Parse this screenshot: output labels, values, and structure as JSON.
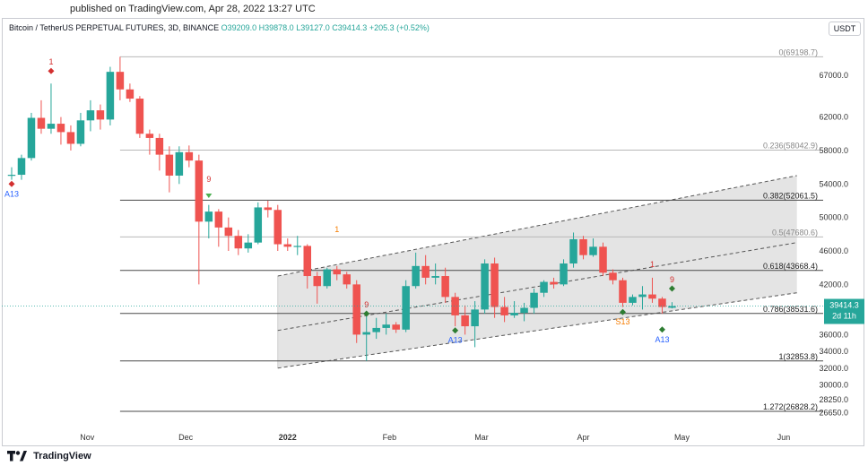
{
  "header": {
    "published": "published on TradingView.com, Apr 28, 2022 13:27 UTC",
    "instrument": "Bitcoin / TetherUS PERPETUAL FUTURES, 3D, BINANCE",
    "open": "O39209.0",
    "high": "H39878.0",
    "low": "L39127.0",
    "close": "C39414.3",
    "change": "+205.3 (+0.52%)",
    "currency_button": "USDT"
  },
  "brand": {
    "name": "TradingView"
  },
  "colors": {
    "up": "#26a69a",
    "down": "#ef5350",
    "channel_fill": "#e1e1e1",
    "fib_line": "#4a4a4a",
    "last_price_bg": "#26a69a",
    "signal_red": "#d32f2f",
    "signal_green": "#2e7d32",
    "label_blue": "#2962ff",
    "label_orange": "#f57c00"
  },
  "chart_data": {
    "type": "candlestick",
    "ylim": [
      24800,
      71700
    ],
    "y_ticks": [
      {
        "label": "67000.0",
        "value": 67000
      },
      {
        "label": "62000.0",
        "value": 62000
      },
      {
        "label": "58000.0",
        "value": 58000
      },
      {
        "label": "54000.0",
        "value": 54000
      },
      {
        "label": "50000.0",
        "value": 50000
      },
      {
        "label": "46000.0",
        "value": 46000
      },
      {
        "label": "42000.0",
        "value": 42000
      },
      {
        "label": "36000.0",
        "value": 36000
      },
      {
        "label": "34000.0",
        "value": 34000
      },
      {
        "label": "32000.0",
        "value": 32000
      },
      {
        "label": "30000.0",
        "value": 30000
      },
      {
        "label": "28250.0",
        "value": 28250
      },
      {
        "label": "26650.0",
        "value": 26650
      }
    ],
    "x_ticks": [
      {
        "label": "Nov",
        "date": "2021-11-01"
      },
      {
        "label": "Dec",
        "date": "2021-12-01"
      },
      {
        "label": "2022",
        "date": "2022-01-01",
        "bold": true
      },
      {
        "label": "Feb",
        "date": "2022-02-01"
      },
      {
        "label": "Mar",
        "date": "2022-03-01"
      },
      {
        "label": "Apr",
        "date": "2022-04-01"
      },
      {
        "label": "May",
        "date": "2022-05-01"
      },
      {
        "label": "Jun",
        "date": "2022-06-01"
      }
    ],
    "candles": [
      {
        "date": "2021-10-09",
        "open": 55000,
        "high": 56000,
        "low": 54500,
        "close": 55100
      },
      {
        "date": "2021-10-12",
        "open": 55100,
        "high": 57500,
        "low": 54500,
        "close": 57100
      },
      {
        "date": "2021-10-15",
        "open": 57100,
        "high": 62500,
        "low": 56800,
        "close": 61900
      },
      {
        "date": "2021-10-18",
        "open": 61900,
        "high": 64000,
        "low": 60000,
        "close": 60600
      },
      {
        "date": "2021-10-21",
        "open": 60600,
        "high": 66000,
        "low": 60000,
        "close": 61200
      },
      {
        "date": "2021-10-24",
        "open": 61200,
        "high": 62000,
        "low": 58700,
        "close": 60200
      },
      {
        "date": "2021-10-27",
        "open": 60200,
        "high": 61000,
        "low": 58000,
        "close": 58800
      },
      {
        "date": "2021-10-30",
        "open": 58800,
        "high": 62500,
        "low": 58500,
        "close": 61600
      },
      {
        "date": "2021-11-02",
        "open": 61600,
        "high": 64000,
        "low": 60300,
        "close": 62800
      },
      {
        "date": "2021-11-05",
        "open": 62800,
        "high": 63500,
        "low": 60500,
        "close": 61700
      },
      {
        "date": "2021-11-08",
        "open": 61700,
        "high": 68000,
        "low": 61000,
        "close": 67400
      },
      {
        "date": "2021-11-11",
        "open": 67400,
        "high": 69198.7,
        "low": 64000,
        "close": 65300
      },
      {
        "date": "2021-11-14",
        "open": 65300,
        "high": 66000,
        "low": 63800,
        "close": 64200
      },
      {
        "date": "2021-11-17",
        "open": 64200,
        "high": 64500,
        "low": 59500,
        "close": 60000
      },
      {
        "date": "2021-11-20",
        "open": 60000,
        "high": 60500,
        "low": 57500,
        "close": 59500
      },
      {
        "date": "2021-11-23",
        "open": 59500,
        "high": 60000,
        "low": 55600,
        "close": 57500
      },
      {
        "date": "2021-11-26",
        "open": 57500,
        "high": 58500,
        "low": 53000,
        "close": 55000
      },
      {
        "date": "2021-11-29",
        "open": 55000,
        "high": 58500,
        "low": 54000,
        "close": 57800
      },
      {
        "date": "2021-12-02",
        "open": 57800,
        "high": 58600,
        "low": 56000,
        "close": 56800
      },
      {
        "date": "2021-12-05",
        "open": 56800,
        "high": 57500,
        "low": 42000,
        "close": 49500
      },
      {
        "date": "2021-12-08",
        "open": 49500,
        "high": 51500,
        "low": 47500,
        "close": 50700
      },
      {
        "date": "2021-12-11",
        "open": 50700,
        "high": 51000,
        "low": 46500,
        "close": 48800
      },
      {
        "date": "2021-12-14",
        "open": 48800,
        "high": 50000,
        "low": 46000,
        "close": 47800
      },
      {
        "date": "2021-12-17",
        "open": 47800,
        "high": 48500,
        "low": 45500,
        "close": 46300
      },
      {
        "date": "2021-12-20",
        "open": 46300,
        "high": 48000,
        "low": 45800,
        "close": 47000
      },
      {
        "date": "2021-12-23",
        "open": 47000,
        "high": 51800,
        "low": 46800,
        "close": 51200
      },
      {
        "date": "2021-12-26",
        "open": 51200,
        "high": 52000,
        "low": 50000,
        "close": 50900
      },
      {
        "date": "2021-12-29",
        "open": 50900,
        "high": 51500,
        "low": 46000,
        "close": 46800
      },
      {
        "date": "2022-01-01",
        "open": 46800,
        "high": 47500,
        "low": 46000,
        "close": 46500
      },
      {
        "date": "2022-01-04",
        "open": 46500,
        "high": 47800,
        "low": 45500,
        "close": 46600
      },
      {
        "date": "2022-01-07",
        "open": 46600,
        "high": 46800,
        "low": 41500,
        "close": 43000
      },
      {
        "date": "2022-01-10",
        "open": 43000,
        "high": 43500,
        "low": 39700,
        "close": 41800
      },
      {
        "date": "2022-01-13",
        "open": 41800,
        "high": 44000,
        "low": 41500,
        "close": 43800
      },
      {
        "date": "2022-01-16",
        "open": 43800,
        "high": 44200,
        "low": 42500,
        "close": 43200
      },
      {
        "date": "2022-01-19",
        "open": 43200,
        "high": 43500,
        "low": 41500,
        "close": 42000
      },
      {
        "date": "2022-01-22",
        "open": 42000,
        "high": 42500,
        "low": 35000,
        "close": 36000
      },
      {
        "date": "2022-01-25",
        "open": 36000,
        "high": 38500,
        "low": 32853.8,
        "close": 36300
      },
      {
        "date": "2022-01-28",
        "open": 36300,
        "high": 38000,
        "low": 35500,
        "close": 36800
      },
      {
        "date": "2022-01-31",
        "open": 36800,
        "high": 38500,
        "low": 36000,
        "close": 37200
      },
      {
        "date": "2022-02-03",
        "open": 37200,
        "high": 37500,
        "low": 36200,
        "close": 36600
      },
      {
        "date": "2022-02-06",
        "open": 36600,
        "high": 42500,
        "low": 36300,
        "close": 41800
      },
      {
        "date": "2022-02-09",
        "open": 41800,
        "high": 45800,
        "low": 41500,
        "close": 44200
      },
      {
        "date": "2022-02-12",
        "open": 44200,
        "high": 45500,
        "low": 42000,
        "close": 42800
      },
      {
        "date": "2022-02-15",
        "open": 42800,
        "high": 44500,
        "low": 42000,
        "close": 43000
      },
      {
        "date": "2022-02-18",
        "open": 43000,
        "high": 44000,
        "low": 39800,
        "close": 40500
      },
      {
        "date": "2022-02-21",
        "open": 40500,
        "high": 41000,
        "low": 37000,
        "close": 38300
      },
      {
        "date": "2022-02-24",
        "open": 38300,
        "high": 39500,
        "low": 36000,
        "close": 37000
      },
      {
        "date": "2022-02-27",
        "open": 37000,
        "high": 40000,
        "low": 34500,
        "close": 39000
      },
      {
        "date": "2022-03-02",
        "open": 39000,
        "high": 45000,
        "low": 38500,
        "close": 44500
      },
      {
        "date": "2022-03-05",
        "open": 44500,
        "high": 45200,
        "low": 38000,
        "close": 39300
      },
      {
        "date": "2022-03-08",
        "open": 39300,
        "high": 40500,
        "low": 37500,
        "close": 38300
      },
      {
        "date": "2022-03-11",
        "open": 38300,
        "high": 40000,
        "low": 38000,
        "close": 38600
      },
      {
        "date": "2022-03-14",
        "open": 38600,
        "high": 39800,
        "low": 37600,
        "close": 39200
      },
      {
        "date": "2022-03-17",
        "open": 39200,
        "high": 41500,
        "low": 38500,
        "close": 41000
      },
      {
        "date": "2022-03-20",
        "open": 41000,
        "high": 42500,
        "low": 40500,
        "close": 42300
      },
      {
        "date": "2022-03-23",
        "open": 42300,
        "high": 42800,
        "low": 41500,
        "close": 42000
      },
      {
        "date": "2022-03-26",
        "open": 42000,
        "high": 45000,
        "low": 41800,
        "close": 44500
      },
      {
        "date": "2022-03-29",
        "open": 44500,
        "high": 48200,
        "low": 44000,
        "close": 47400
      },
      {
        "date": "2022-04-01",
        "open": 47400,
        "high": 47800,
        "low": 45000,
        "close": 45500
      },
      {
        "date": "2022-04-04",
        "open": 45500,
        "high": 47500,
        "low": 45300,
        "close": 46500
      },
      {
        "date": "2022-04-07",
        "open": 46500,
        "high": 47000,
        "low": 43000,
        "close": 43400
      },
      {
        "date": "2022-04-10",
        "open": 43400,
        "high": 43800,
        "low": 42000,
        "close": 42500
      },
      {
        "date": "2022-04-13",
        "open": 42500,
        "high": 42800,
        "low": 39300,
        "close": 39800
      },
      {
        "date": "2022-04-16",
        "open": 39800,
        "high": 40800,
        "low": 39500,
        "close": 40500
      },
      {
        "date": "2022-04-19",
        "open": 40500,
        "high": 41800,
        "low": 39000,
        "close": 40800
      },
      {
        "date": "2022-04-22",
        "open": 40800,
        "high": 42800,
        "low": 39800,
        "close": 40300
      },
      {
        "date": "2022-04-25",
        "open": 40300,
        "high": 40500,
        "low": 38500,
        "close": 39300
      },
      {
        "date": "2022-04-28",
        "open": 39209.0,
        "high": 39878.0,
        "low": 39127.0,
        "close": 39414.3
      }
    ],
    "fib_levels": [
      {
        "label": "0(69198.7)",
        "value": 69198.7
      },
      {
        "label": "0.236(58042.9)",
        "value": 58042.9
      },
      {
        "label": "0.382(52061.5)",
        "value": 52061.5
      },
      {
        "label": "0.5(47680.6)",
        "value": 47680.6
      },
      {
        "label": "0.618(43668.4)",
        "value": 43668.4
      },
      {
        "label": "0.786(38531.6)",
        "value": 38531.6
      },
      {
        "label": "1(32853.8)",
        "value": 32853.8
      },
      {
        "label": "1.272(26828.2)",
        "value": 26828.2
      }
    ],
    "channel": {
      "start_date": "2021-12-29",
      "end_date": "2022-06-05",
      "upper": [
        43000,
        55000
      ],
      "middle": [
        36500,
        47000
      ],
      "lower": [
        32000,
        41000
      ]
    },
    "last_price": {
      "value": 39414.3,
      "label": "39414.3",
      "countdown": "2d 11h"
    },
    "markers": [
      {
        "date": "2021-10-09",
        "price": 54000,
        "text": "A13",
        "color": "label_blue",
        "position": "below",
        "shape": "diamond",
        "shape_color": "signal_red"
      },
      {
        "date": "2021-10-21",
        "price": 67500,
        "text": "1",
        "color": "signal_red",
        "position": "above",
        "shape": "diamond",
        "shape_color": "signal_red"
      },
      {
        "date": "2021-12-08",
        "price": 53500,
        "text": "9",
        "color": "signal_red",
        "position": "above",
        "shape": "triangle",
        "shape_color": "#4caf50"
      },
      {
        "date": "2022-01-16",
        "price": 47500,
        "text": "1",
        "color": "label_orange",
        "position": "above",
        "shape": "none",
        "shape_color": ""
      },
      {
        "date": "2022-01-25",
        "price": 38500,
        "text": "9",
        "color": "signal_red",
        "position": "above",
        "shape": "diamond",
        "shape_color": "signal_green"
      },
      {
        "date": "2022-02-21",
        "price": 36500,
        "text": "A13",
        "color": "label_blue",
        "position": "below",
        "shape": "diamond",
        "shape_color": "signal_green"
      },
      {
        "date": "2022-04-13",
        "price": 38700,
        "text": "S13",
        "color": "label_orange",
        "position": "below",
        "shape": "diamond",
        "shape_color": "signal_green"
      },
      {
        "date": "2022-04-22",
        "price": 43300,
        "text": "1",
        "color": "signal_red",
        "position": "above",
        "shape": "none",
        "shape_color": ""
      },
      {
        "date": "2022-04-25",
        "price": 36600,
        "text": "A13",
        "color": "label_blue",
        "position": "below",
        "shape": "diamond",
        "shape_color": "signal_green"
      },
      {
        "date": "2022-04-28",
        "price": 41500,
        "text": "9",
        "color": "signal_red",
        "position": "above",
        "shape": "diamond",
        "shape_color": "signal_green"
      }
    ]
  }
}
